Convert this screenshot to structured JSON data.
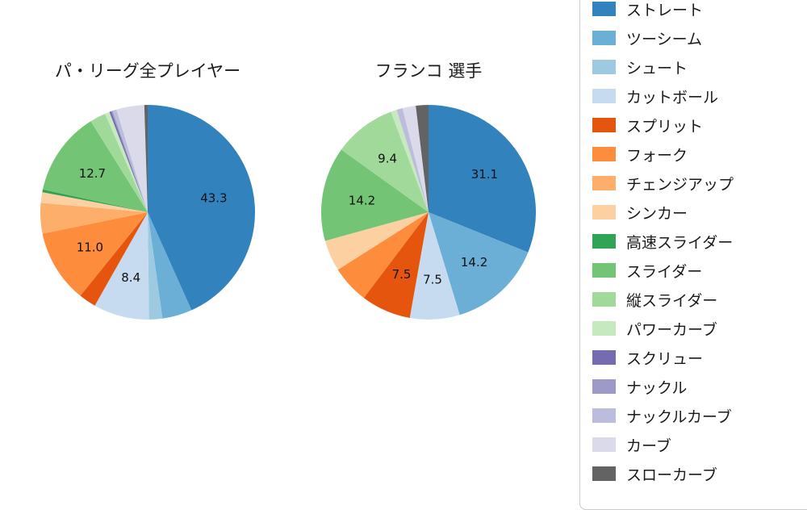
{
  "page": {
    "background": "#ffffff"
  },
  "legend": {
    "items": [
      {
        "id": "straight",
        "label": "ストレート",
        "color": "#3182bd"
      },
      {
        "id": "two-seam",
        "label": "ツーシーム",
        "color": "#6baed6"
      },
      {
        "id": "shoot",
        "label": "シュート",
        "color": "#9ecae1"
      },
      {
        "id": "cutball",
        "label": "カットボール",
        "color": "#c6dbef"
      },
      {
        "id": "split",
        "label": "スプリット",
        "color": "#e6550d"
      },
      {
        "id": "fork",
        "label": "フォーク",
        "color": "#fd8d3c"
      },
      {
        "id": "changeup",
        "label": "チェンジアップ",
        "color": "#fdae6b"
      },
      {
        "id": "sinker",
        "label": "シンカー",
        "color": "#fdd0a2"
      },
      {
        "id": "fast-slider",
        "label": "高速スライダー",
        "color": "#31a354"
      },
      {
        "id": "slider",
        "label": "スライダー",
        "color": "#74c476"
      },
      {
        "id": "vertical-slider",
        "label": "縦スライダー",
        "color": "#a1d99b"
      },
      {
        "id": "power-curve",
        "label": "パワーカーブ",
        "color": "#c7e9c0"
      },
      {
        "id": "screw",
        "label": "スクリュー",
        "color": "#756bb1"
      },
      {
        "id": "knuckle",
        "label": "ナックル",
        "color": "#9e9ac8"
      },
      {
        "id": "knuckle-curve",
        "label": "ナックルカーブ",
        "color": "#bcbddc"
      },
      {
        "id": "curve",
        "label": "カーブ",
        "color": "#dadaeb"
      },
      {
        "id": "slow-curve",
        "label": "スローカーブ",
        "color": "#636363"
      }
    ]
  },
  "chart_data": [
    {
      "type": "pie",
      "title": "パ・リーグ全プレイヤー",
      "start_angle_deg": 0,
      "direction": "clockwise-from-top",
      "label_threshold": 7.0,
      "labeled_values": [
        43.3,
        8.4,
        11.0,
        12.7
      ],
      "slices": [
        {
          "id": "straight",
          "label": "ストレート",
          "value": 43.3,
          "color": "#3182bd"
        },
        {
          "id": "two-seam",
          "label": "ツーシーム",
          "value": 4.5,
          "color": "#6baed6"
        },
        {
          "id": "shoot",
          "label": "シュート",
          "value": 2.0,
          "color": "#9ecae1"
        },
        {
          "id": "cutball",
          "label": "カットボール",
          "value": 8.4,
          "color": "#c6dbef"
        },
        {
          "id": "split",
          "label": "スプリット",
          "value": 2.6,
          "color": "#e6550d"
        },
        {
          "id": "fork",
          "label": "フォーク",
          "value": 11.0,
          "color": "#fd8d3c"
        },
        {
          "id": "changeup",
          "label": "チェンジアップ",
          "value": 4.6,
          "color": "#fdae6b"
        },
        {
          "id": "sinker",
          "label": "シンカー",
          "value": 1.6,
          "color": "#fdd0a2"
        },
        {
          "id": "fast-slider",
          "label": "高速スライダー",
          "value": 0.4,
          "color": "#31a354"
        },
        {
          "id": "slider",
          "label": "スライダー",
          "value": 12.7,
          "color": "#74c476"
        },
        {
          "id": "vertical-slider",
          "label": "縦スライダー",
          "value": 2.4,
          "color": "#a1d99b"
        },
        {
          "id": "power-curve",
          "label": "パワーカーブ",
          "value": 0.7,
          "color": "#c7e9c0"
        },
        {
          "id": "screw",
          "label": "スクリュー",
          "value": 0.3,
          "color": "#756bb1"
        },
        {
          "id": "knuckle",
          "label": "ナックル",
          "value": 0.2,
          "color": "#9e9ac8"
        },
        {
          "id": "knuckle-curve",
          "label": "ナックルカーブ",
          "value": 0.6,
          "color": "#bcbddc"
        },
        {
          "id": "curve",
          "label": "カーブ",
          "value": 4.2,
          "color": "#dadaeb"
        },
        {
          "id": "slow-curve",
          "label": "スローカーブ",
          "value": 0.5,
          "color": "#636363"
        }
      ]
    },
    {
      "type": "pie",
      "title": "フランコ 選手",
      "start_angle_deg": 0,
      "direction": "clockwise-from-top",
      "label_threshold": 7.0,
      "labeled_values": [
        31.1,
        14.2,
        7.5,
        7.5,
        14.2,
        9.4
      ],
      "slices": [
        {
          "id": "straight",
          "label": "ストレート",
          "value": 31.1,
          "color": "#3182bd"
        },
        {
          "id": "two-seam",
          "label": "ツーシーム",
          "value": 14.2,
          "color": "#6baed6"
        },
        {
          "id": "shoot",
          "label": "シュート",
          "value": 0.0,
          "color": "#9ecae1"
        },
        {
          "id": "cutball",
          "label": "カットボール",
          "value": 7.5,
          "color": "#c6dbef"
        },
        {
          "id": "split",
          "label": "スプリット",
          "value": 7.5,
          "color": "#e6550d"
        },
        {
          "id": "fork",
          "label": "フォーク",
          "value": 5.7,
          "color": "#fd8d3c"
        },
        {
          "id": "changeup",
          "label": "チェンジアップ",
          "value": 0.0,
          "color": "#fdae6b"
        },
        {
          "id": "sinker",
          "label": "シンカー",
          "value": 4.7,
          "color": "#fdd0a2"
        },
        {
          "id": "fast-slider",
          "label": "高速スライダー",
          "value": 0.0,
          "color": "#31a354"
        },
        {
          "id": "slider",
          "label": "スライダー",
          "value": 14.2,
          "color": "#74c476"
        },
        {
          "id": "vertical-slider",
          "label": "縦スライダー",
          "value": 9.4,
          "color": "#a1d99b"
        },
        {
          "id": "power-curve",
          "label": "パワーカーブ",
          "value": 0.9,
          "color": "#c7e9c0"
        },
        {
          "id": "screw",
          "label": "スクリュー",
          "value": 0.0,
          "color": "#756bb1"
        },
        {
          "id": "knuckle",
          "label": "ナックル",
          "value": 0.0,
          "color": "#9e9ac8"
        },
        {
          "id": "knuckle-curve",
          "label": "ナックルカーブ",
          "value": 0.9,
          "color": "#bcbddc"
        },
        {
          "id": "curve",
          "label": "カーブ",
          "value": 2.0,
          "color": "#dadaeb"
        },
        {
          "id": "slow-curve",
          "label": "スローカーブ",
          "value": 1.9,
          "color": "#636363"
        }
      ]
    }
  ]
}
